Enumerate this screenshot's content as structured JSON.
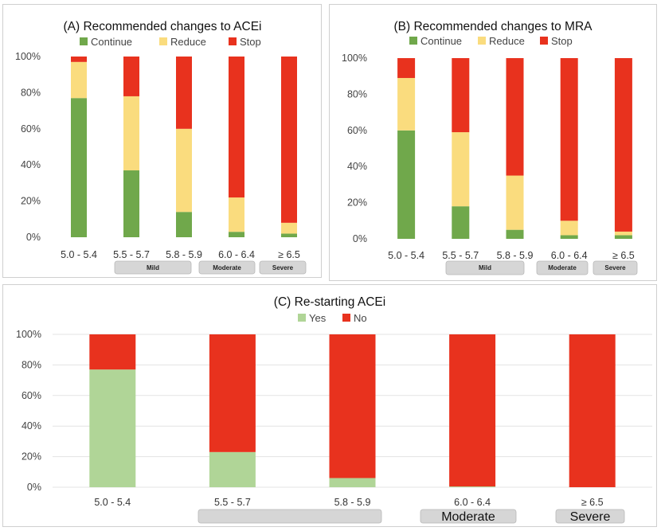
{
  "colors": {
    "continue": "#70a84b",
    "reduce": "#fadc7e",
    "stop": "#e8321e",
    "yes": "#b0d597",
    "no": "#e8321e"
  },
  "chart_data": [
    {
      "id": "A",
      "type": "bar",
      "stacked": true,
      "title": "(A) Recommended changes to ACEi",
      "categories": [
        "5.0 - 5.4",
        "5.5 - 5.7",
        "5.8 - 5.9",
        "6.0 - 6.4",
        "≥ 6.5"
      ],
      "series": [
        {
          "name": "Continue",
          "color_key": "continue",
          "values": [
            77,
            37,
            14,
            3,
            2
          ]
        },
        {
          "name": "Reduce",
          "color_key": "reduce",
          "values": [
            20,
            41,
            46,
            19,
            6
          ]
        },
        {
          "name": "Stop",
          "color_key": "stop",
          "values": [
            3,
            22,
            40,
            78,
            92
          ]
        }
      ],
      "y_ticks": [
        "0%",
        "20%",
        "40%",
        "60%",
        "80%",
        "100%"
      ],
      "ylim": [
        0,
        100
      ],
      "severity_labels": [
        "Mild",
        "Moderate",
        "Severe"
      ]
    },
    {
      "id": "B",
      "type": "bar",
      "stacked": true,
      "title": "(B) Recommended changes to MRA",
      "categories": [
        "5.0 - 5.4",
        "5.5 - 5.7",
        "5.8 - 5.9",
        "6.0 - 6.4",
        "≥ 6.5"
      ],
      "series": [
        {
          "name": "Continue",
          "color_key": "continue",
          "values": [
            60,
            18,
            5,
            2,
            2
          ]
        },
        {
          "name": "Reduce",
          "color_key": "reduce",
          "values": [
            29,
            41,
            30,
            8,
            2
          ]
        },
        {
          "name": "Stop",
          "color_key": "stop",
          "values": [
            11,
            41,
            65,
            90,
            96
          ]
        }
      ],
      "y_ticks": [
        "0%",
        "20%",
        "40%",
        "60%",
        "80%",
        "100%"
      ],
      "ylim": [
        0,
        100
      ],
      "severity_labels": [
        "Mild",
        "Moderate",
        "Severe"
      ]
    },
    {
      "id": "C",
      "type": "bar",
      "stacked": true,
      "title": "(C) Re-starting ACEi",
      "categories": [
        "5.0 - 5.4",
        "5.5 - 5.7",
        "5.8 - 5.9",
        "6.0 - 6.4",
        "≥ 6.5"
      ],
      "series": [
        {
          "name": "Yes",
          "color_key": "yes",
          "values": [
            77,
            23,
            6,
            0.5,
            0
          ]
        },
        {
          "name": "No",
          "color_key": "no",
          "values": [
            23,
            77,
            94,
            99.5,
            100
          ]
        }
      ],
      "y_ticks": [
        "0%",
        "20%",
        "40%",
        "60%",
        "80%",
        "100%"
      ],
      "ylim": [
        0,
        100
      ],
      "severity_labels": [
        "",
        "Moderate",
        "Severe"
      ]
    }
  ]
}
